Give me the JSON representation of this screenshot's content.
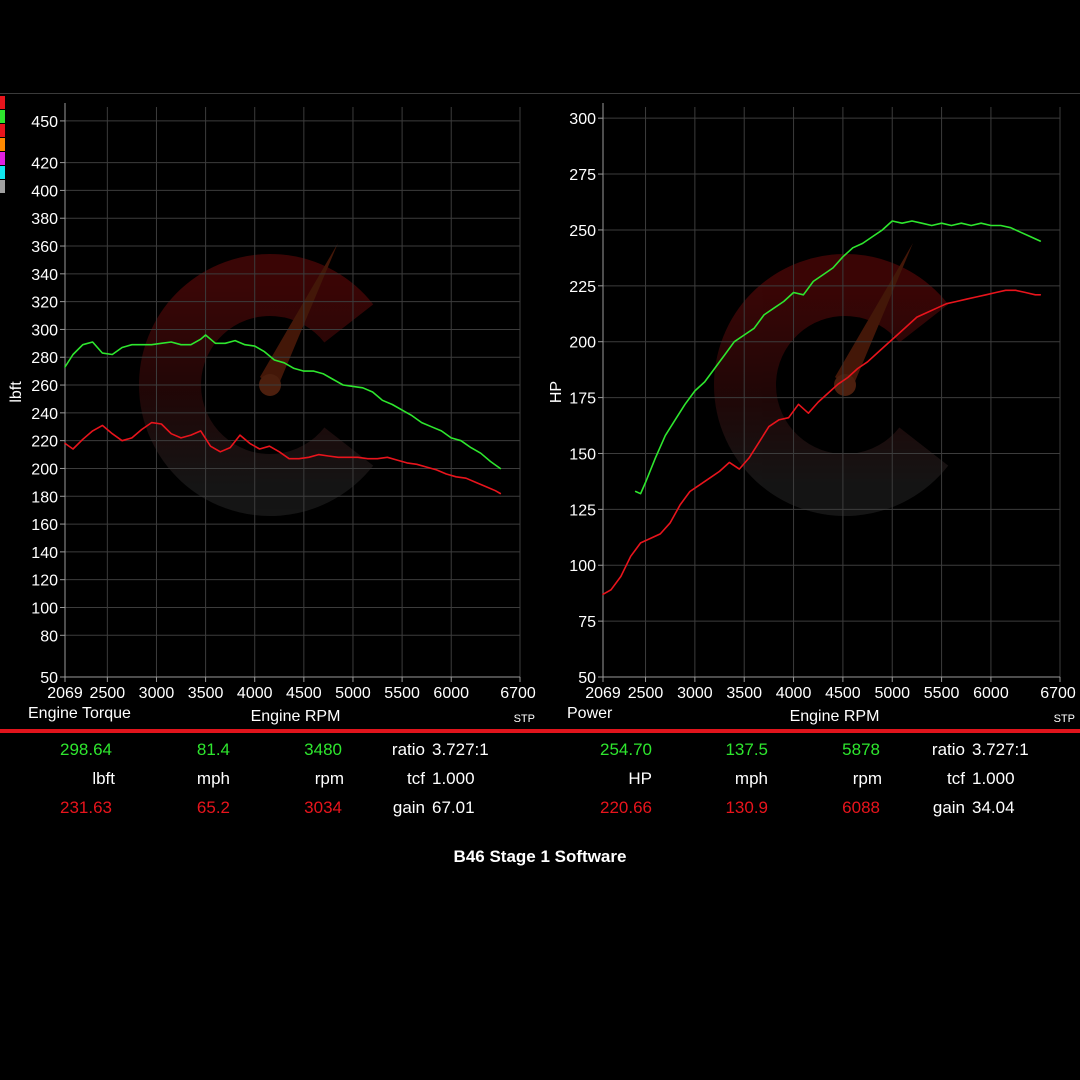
{
  "colors": {
    "green": "#2ee62e",
    "red": "#e8141c",
    "grid": "#3c3c3c",
    "axis": "#9a9a9a",
    "swatches": [
      "#e8141c",
      "#2ee62e",
      "#e8141c",
      "#ff8a00",
      "#e020e0",
      "#10e8f0",
      "#a0a0a0"
    ]
  },
  "chart_data": [
    {
      "type": "line",
      "title": "Engine Torque",
      "xlabel": "Engine RPM",
      "ylabel": "lbft",
      "xlim": [
        2069,
        6700
      ],
      "ylim": [
        50,
        460
      ],
      "x_tick_labels": [
        "2069",
        "2500",
        "3000",
        "3500",
        "4000",
        "4500",
        "5000",
        "5500",
        "6000",
        "6700"
      ],
      "y_tick_labels": [
        "50",
        "80",
        "100",
        "120",
        "140",
        "160",
        "180",
        "200",
        "220",
        "240",
        "260",
        "280",
        "300",
        "320",
        "340",
        "360",
        "380",
        "400",
        "420",
        "450"
      ],
      "corner_note": "STP",
      "grid": true,
      "series": [
        {
          "color": "green",
          "x": [
            2069,
            2150,
            2250,
            2350,
            2450,
            2550,
            2650,
            2750,
            2850,
            2950,
            3050,
            3150,
            3250,
            3350,
            3450,
            3500,
            3600,
            3700,
            3800,
            3900,
            4000,
            4100,
            4200,
            4300,
            4400,
            4500,
            4600,
            4700,
            4800,
            4900,
            5000,
            5100,
            5200,
            5300,
            5400,
            5500,
            5600,
            5700,
            5800,
            5900,
            6000,
            6100,
            6200,
            6300,
            6400,
            6500
          ],
          "y": [
            273,
            282,
            289,
            291,
            283,
            282,
            287,
            289,
            289,
            289,
            290,
            291,
            289,
            289,
            293,
            296,
            290,
            290,
            292,
            289,
            288,
            284,
            278,
            276,
            272,
            270,
            270,
            268,
            264,
            260,
            259,
            258,
            255,
            249,
            246,
            242,
            238,
            233,
            230,
            227,
            222,
            220,
            215,
            211,
            205,
            200
          ]
        },
        {
          "color": "red",
          "x": [
            2069,
            2150,
            2250,
            2350,
            2450,
            2550,
            2650,
            2750,
            2850,
            2950,
            3050,
            3150,
            3250,
            3350,
            3450,
            3550,
            3650,
            3750,
            3850,
            3950,
            4050,
            4150,
            4250,
            4350,
            4450,
            4550,
            4650,
            4750,
            4850,
            4950,
            5050,
            5150,
            5250,
            5350,
            5450,
            5550,
            5650,
            5750,
            5850,
            5950,
            6050,
            6150,
            6250,
            6350,
            6450,
            6500
          ],
          "y": [
            218,
            214,
            221,
            227,
            231,
            225,
            220,
            222,
            228,
            233,
            232,
            225,
            222,
            224,
            227,
            216,
            212,
            215,
            224,
            218,
            214,
            216,
            212,
            207,
            207,
            208,
            210,
            209,
            208,
            208,
            208,
            207,
            207,
            208,
            206,
            204,
            203,
            201,
            199,
            196,
            194,
            193,
            190,
            187,
            184,
            182
          ]
        }
      ]
    },
    {
      "type": "line",
      "title": "Power",
      "xlabel": "Engine RPM",
      "ylabel": "HP",
      "xlim": [
        2069,
        6700
      ],
      "ylim": [
        50,
        305
      ],
      "x_tick_labels": [
        "2069",
        "2500",
        "3000",
        "3500",
        "4000",
        "4500",
        "5000",
        "5500",
        "6000",
        "6700"
      ],
      "y_tick_labels": [
        "50",
        "75",
        "100",
        "125",
        "150",
        "175",
        "200",
        "225",
        "250",
        "275",
        "300"
      ],
      "corner_note": "STP",
      "grid": true,
      "series": [
        {
          "color": "green",
          "x": [
            2400,
            2450,
            2500,
            2600,
            2700,
            2800,
            2900,
            3000,
            3100,
            3200,
            3300,
            3400,
            3500,
            3600,
            3700,
            3800,
            3900,
            4000,
            4100,
            4200,
            4300,
            4400,
            4500,
            4600,
            4700,
            4800,
            4900,
            5000,
            5100,
            5200,
            5300,
            5400,
            5500,
            5600,
            5700,
            5800,
            5900,
            6000,
            6100,
            6200,
            6300,
            6400,
            6500
          ],
          "y": [
            133,
            132,
            137,
            148,
            158,
            165,
            172,
            178,
            182,
            188,
            194,
            200,
            203,
            206,
            212,
            215,
            218,
            222,
            221,
            227,
            230,
            233,
            238,
            242,
            244,
            247,
            250,
            254,
            253,
            254,
            253,
            252,
            253,
            252,
            253,
            252,
            253,
            252,
            252,
            251,
            249,
            247,
            245
          ]
        },
        {
          "color": "red",
          "x": [
            2069,
            2150,
            2250,
            2350,
            2450,
            2550,
            2650,
            2750,
            2850,
            2950,
            3050,
            3150,
            3250,
            3350,
            3450,
            3550,
            3650,
            3750,
            3850,
            3950,
            4050,
            4150,
            4250,
            4350,
            4450,
            4550,
            4650,
            4750,
            4850,
            4950,
            5050,
            5150,
            5250,
            5350,
            5450,
            5550,
            5650,
            5750,
            5850,
            5950,
            6050,
            6150,
            6250,
            6350,
            6450,
            6500
          ],
          "y": [
            87,
            89,
            95,
            104,
            110,
            112,
            114,
            119,
            127,
            133,
            136,
            139,
            142,
            146,
            143,
            148,
            155,
            162,
            165,
            166,
            172,
            168,
            173,
            177,
            181,
            184,
            188,
            191,
            195,
            199,
            203,
            207,
            211,
            213,
            215,
            217,
            218,
            219,
            220,
            221,
            222,
            223,
            223,
            222,
            221,
            221
          ]
        }
      ]
    }
  ],
  "readout": {
    "left": {
      "green": [
        "298.64",
        "81.4",
        "3480"
      ],
      "units": [
        "lbft",
        "mph",
        "rpm"
      ],
      "red": [
        "231.63",
        "65.2",
        "3034"
      ],
      "params": [
        [
          "ratio",
          "3.727:1"
        ],
        [
          "tcf",
          "1.000"
        ],
        [
          "gain",
          "67.01"
        ]
      ]
    },
    "right": {
      "green": [
        "254.70",
        "137.5",
        "5878"
      ],
      "units": [
        "HP",
        "mph",
        "rpm"
      ],
      "red": [
        "220.66",
        "130.9",
        "6088"
      ],
      "params": [
        [
          "ratio",
          "3.727:1"
        ],
        [
          "tcf",
          "1.000"
        ],
        [
          "gain",
          "34.04"
        ]
      ]
    }
  },
  "caption": "B46 Stage 1 Software"
}
